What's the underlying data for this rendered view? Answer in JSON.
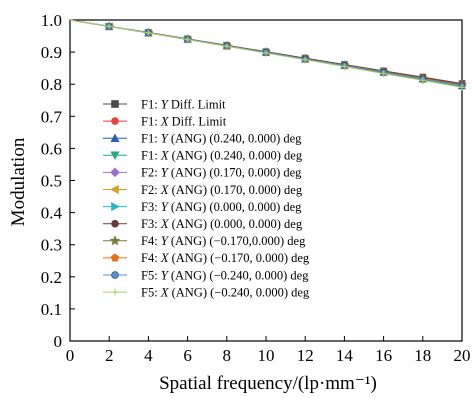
{
  "chart_data": {
    "type": "line",
    "xlabel": "Spatial frequency/(lp·mm⁻¹)",
    "ylabel": "Modulation",
    "xlim": [
      0,
      20
    ],
    "ylim": [
      0,
      1.0
    ],
    "xticks": [
      0,
      2,
      4,
      6,
      8,
      10,
      12,
      14,
      16,
      18,
      20
    ],
    "yticks": [
      0,
      0.1,
      0.2,
      0.3,
      0.4,
      0.5,
      0.6,
      0.7,
      0.8,
      0.9,
      1.0
    ],
    "xtick_labels": [
      "0",
      "2",
      "4",
      "6",
      "8",
      "10",
      "12",
      "14",
      "16",
      "18",
      "20"
    ],
    "ytick_labels": [
      "0",
      "0.1",
      "0.2",
      "0.3",
      "0.4",
      "0.5",
      "0.6",
      "0.7",
      "0.8",
      "0.9",
      "1.0"
    ],
    "grid": false,
    "legend_position": "center-left",
    "x": [
      0,
      2,
      4,
      6,
      8,
      10,
      12,
      14,
      16,
      18,
      20
    ],
    "series": [
      {
        "name_parts": [
          "F1: ",
          "Y",
          " Diff. Limit"
        ],
        "color": "#4a4a4a",
        "marker": "square",
        "values": [
          1.0,
          0.98,
          0.961,
          0.941,
          0.921,
          0.901,
          0.881,
          0.861,
          0.841,
          0.822,
          0.802
        ]
      },
      {
        "name_parts": [
          "F1: ",
          "X",
          " Diff. Limit"
        ],
        "color": "#e8413c",
        "marker": "circle",
        "values": [
          1.0,
          0.98,
          0.961,
          0.941,
          0.921,
          0.901,
          0.881,
          0.861,
          0.841,
          0.822,
          0.802
        ]
      },
      {
        "name_parts": [
          "F1: ",
          "Y",
          " (ANG) (0.240, 0.000) deg"
        ],
        "color": "#2f5fb5",
        "marker": "triangle-up",
        "values": [
          1.0,
          0.98,
          0.96,
          0.94,
          0.919,
          0.899,
          0.878,
          0.858,
          0.837,
          0.816,
          0.795
        ]
      },
      {
        "name_parts": [
          "F1: ",
          "X",
          " (ANG) (0.240, 0.000) deg"
        ],
        "color": "#2aa884",
        "marker": "triangle-down",
        "values": [
          1.0,
          0.98,
          0.96,
          0.939,
          0.919,
          0.898,
          0.877,
          0.856,
          0.835,
          0.813,
          0.792
        ]
      },
      {
        "name_parts": [
          "F2: ",
          "Y",
          " (ANG) (0.170, 0.000) deg"
        ],
        "color": "#9b6fd1",
        "marker": "diamond",
        "values": [
          1.0,
          0.98,
          0.96,
          0.94,
          0.92,
          0.9,
          0.879,
          0.859,
          0.839,
          0.818,
          0.798
        ]
      },
      {
        "name_parts": [
          "F2: ",
          "X",
          " (ANG) (0.170, 0.000) deg"
        ],
        "color": "#d4a02a",
        "marker": "triangle-left",
        "values": [
          1.0,
          0.98,
          0.96,
          0.94,
          0.919,
          0.899,
          0.878,
          0.858,
          0.837,
          0.817,
          0.796
        ]
      },
      {
        "name_parts": [
          "F3: ",
          "Y",
          " (ANG) (0.000, 0.000) deg"
        ],
        "color": "#29b6c8",
        "marker": "triangle-right",
        "values": [
          1.0,
          0.98,
          0.961,
          0.941,
          0.921,
          0.901,
          0.881,
          0.861,
          0.841,
          0.821,
          0.801
        ]
      },
      {
        "name_parts": [
          "F3: ",
          "X",
          " (ANG) (0.000, 0.000) deg"
        ],
        "color": "#6b3a3a",
        "marker": "hexagon",
        "values": [
          1.0,
          0.98,
          0.961,
          0.941,
          0.921,
          0.901,
          0.881,
          0.861,
          0.841,
          0.821,
          0.801
        ]
      },
      {
        "name_parts": [
          "F4: ",
          "Y",
          " (ANG) (−0.170,0.000) deg"
        ],
        "color": "#7a7a3a",
        "marker": "star",
        "values": [
          1.0,
          0.98,
          0.96,
          0.94,
          0.92,
          0.9,
          0.879,
          0.859,
          0.839,
          0.818,
          0.798
        ]
      },
      {
        "name_parts": [
          "F4: ",
          "X",
          " (ANG) (−0.170, 0.000) deg"
        ],
        "color": "#e8701c",
        "marker": "pentagon",
        "values": [
          1.0,
          0.98,
          0.96,
          0.94,
          0.919,
          0.899,
          0.878,
          0.858,
          0.837,
          0.817,
          0.796
        ]
      },
      {
        "name_parts": [
          "F5: ",
          "Y",
          " (ANG) (−0.240, 0.000) deg"
        ],
        "color": "#5a8fd0",
        "marker": "circle-shaded",
        "values": [
          1.0,
          0.98,
          0.96,
          0.94,
          0.919,
          0.899,
          0.878,
          0.858,
          0.837,
          0.816,
          0.795
        ]
      },
      {
        "name_parts": [
          "F5: ",
          "X",
          " (ANG) (−0.240, 0.000) deg"
        ],
        "color": "#a8d06a",
        "marker": "plus",
        "values": [
          1.0,
          0.98,
          0.96,
          0.939,
          0.918,
          0.897,
          0.876,
          0.855,
          0.833,
          0.812,
          0.79
        ]
      }
    ]
  }
}
